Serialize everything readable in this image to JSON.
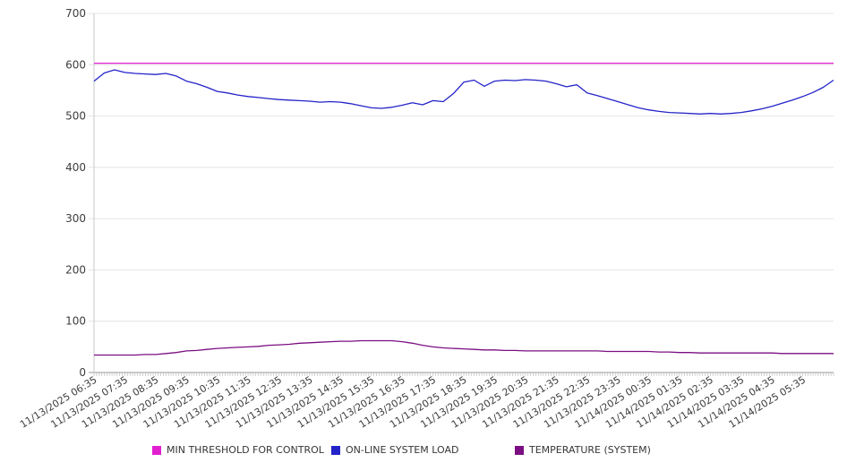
{
  "chart_data": {
    "type": "line",
    "title": "",
    "grid": "horizontal",
    "legend_position": "bottom",
    "x_axis": {
      "labels": [
        "11/13/2025 06:35",
        "11/13/2025 07:35",
        "11/13/2025 08:35",
        "11/13/2025 09:35",
        "11/13/2025 10:35",
        "11/13/2025 11:35",
        "11/13/2025 12:35",
        "11/13/2025 13:35",
        "11/13/2025 14:35",
        "11/13/2025 15:35",
        "11/13/2025 16:35",
        "11/13/2025 17:35",
        "11/13/2025 18:35",
        "11/13/2025 19:35",
        "11/13/2025 20:35",
        "11/13/2025 21:35",
        "11/13/2025 22:35",
        "11/13/2025 23:35",
        "11/14/2025 00:35",
        "11/14/2025 01:35",
        "11/14/2025 02:35",
        "11/14/2025 03:35",
        "11/14/2025 04:35",
        "11/14/2025 05:35"
      ],
      "minor_tick_count": 288
    },
    "y_axis": {
      "min": 0,
      "max": 700,
      "step": 100,
      "ticks": [
        "0",
        "100",
        "200",
        "300",
        "400",
        "500",
        "600",
        "700"
      ]
    },
    "series": [
      {
        "name": "MIN THRESHOLD FOR CONTROL",
        "color": "#E11FD0",
        "type": "threshold",
        "value": 603
      },
      {
        "name": "ON-LINE SYSTEM LOAD",
        "color": "#2323C8",
        "type": "line",
        "values": [
          568,
          584,
          590,
          585,
          583,
          582,
          581,
          583,
          578,
          568,
          563,
          556,
          548,
          545,
          541,
          538,
          536,
          534,
          532,
          531,
          530,
          529,
          527,
          528,
          527,
          524,
          520,
          516,
          515,
          517,
          521,
          526,
          522,
          530,
          528,
          544,
          566,
          570,
          558,
          568,
          570,
          569,
          571,
          570,
          568,
          563,
          557,
          561,
          545,
          540,
          534,
          528,
          522,
          516,
          512,
          509,
          507,
          506,
          505,
          504,
          505,
          504,
          505,
          507,
          510,
          514,
          519,
          525,
          531,
          538,
          546,
          556,
          570
        ]
      },
      {
        "name": "TEMPERATURE (SYSTEM)",
        "color": "#7B0F82",
        "type": "line",
        "values": [
          34,
          34,
          34,
          34,
          34,
          35,
          35,
          37,
          39,
          42,
          43,
          45,
          47,
          48,
          49,
          50,
          51,
          53,
          54,
          55,
          57,
          58,
          59,
          60,
          61,
          61,
          62,
          62,
          62,
          62,
          60,
          57,
          53,
          50,
          48,
          47,
          46,
          45,
          44,
          44,
          43,
          43,
          42,
          42,
          42,
          42,
          42,
          42,
          42,
          42,
          41,
          41,
          41,
          41,
          41,
          40,
          40,
          39,
          39,
          38,
          38,
          38,
          38,
          38,
          38,
          38,
          38,
          37,
          37,
          37,
          37,
          37,
          37
        ]
      }
    ]
  },
  "legend": {
    "items": [
      {
        "label": "MIN THRESHOLD FOR CONTROL",
        "color": "#E11FD0"
      },
      {
        "label": "ON-LINE SYSTEM LOAD",
        "color": "#2323C8"
      },
      {
        "label": "TEMPERATURE (SYSTEM)",
        "color": "#7B0F82"
      }
    ]
  }
}
